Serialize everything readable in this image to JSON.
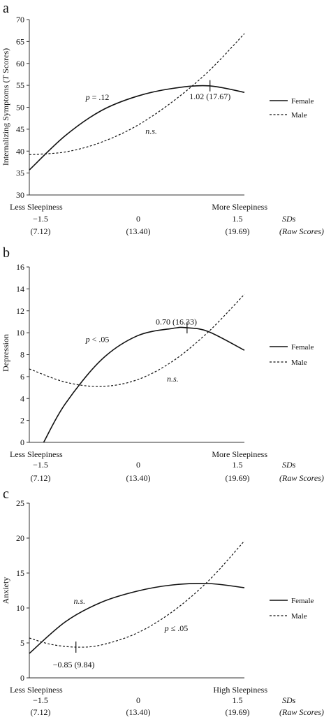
{
  "chart_data": [
    {
      "type": "line",
      "panel_letter": "a",
      "ylabel": "Internalizing Symptoms (T Scores)",
      "ylim": [
        30,
        70
      ],
      "yticks": [
        30,
        35,
        40,
        45,
        50,
        55,
        60,
        65,
        70
      ],
      "xlim": [
        -1.5,
        1.5
      ],
      "grid": false,
      "legend_position": "right",
      "x_end_labels": {
        "left": "Less Sleepiness",
        "right": "More Sleepiness"
      },
      "sd_ticks": [
        "−1.5",
        "0",
        "1.5"
      ],
      "sd_label": "SDs",
      "raw_ticks": [
        "(7.12)",
        "(13.40)",
        "(19.69)"
      ],
      "raw_label": "(Raw Scores)",
      "series": [
        {
          "name": "Female",
          "style": "solid",
          "x": [
            -1.5,
            -1.0,
            -0.5,
            0.0,
            0.5,
            1.0,
            1.5
          ],
          "y": [
            35.7,
            43.5,
            49.2,
            52.5,
            54.3,
            54.9,
            53.4
          ]
        },
        {
          "name": "Male",
          "style": "dashed",
          "x": [
            -1.5,
            -1.0,
            -0.5,
            0.0,
            0.5,
            1.0,
            1.5
          ],
          "y": [
            39.2,
            39.8,
            42.0,
            45.8,
            51.3,
            58.2,
            66.8
          ]
        }
      ],
      "annotations": [
        {
          "text": "p = .12",
          "x": -0.55,
          "y": 52.3,
          "italic_prefix": "p"
        },
        {
          "text": "n.s.",
          "x": 0.2,
          "y": 44.6,
          "italic": true
        },
        {
          "text": "1.02 (17.67)",
          "x": 1.02,
          "y": 52.5,
          "marker_x": 1.02,
          "marker_y": 54.9
        }
      ]
    },
    {
      "type": "line",
      "panel_letter": "b",
      "ylabel": "Depression",
      "ylim": [
        0,
        16
      ],
      "yticks": [
        0,
        2,
        4,
        6,
        8,
        10,
        12,
        14,
        16
      ],
      "xlim": [
        -1.5,
        1.5
      ],
      "grid": false,
      "legend_position": "right",
      "x_end_labels": {
        "left": "Less Sleepiness",
        "right": "More Sleepiness"
      },
      "sd_ticks": [
        "−1.5",
        "0",
        "1.5"
      ],
      "sd_label": "SDs",
      "raw_ticks": [
        "(7.12)",
        "(13.40)",
        "(19.69)"
      ],
      "raw_label": "(Raw Scores)",
      "series": [
        {
          "name": "Female",
          "style": "solid",
          "x": [
            -1.3,
            -1.0,
            -0.5,
            0.0,
            0.5,
            0.7,
            1.0,
            1.5
          ],
          "y": [
            0.0,
            3.5,
            7.5,
            9.7,
            10.4,
            10.45,
            10.1,
            8.4
          ]
        },
        {
          "name": "Male",
          "style": "dashed",
          "x": [
            -1.5,
            -1.0,
            -0.5,
            0.0,
            0.5,
            1.0,
            1.5
          ],
          "y": [
            6.7,
            5.5,
            5.1,
            5.7,
            7.4,
            10.1,
            13.5
          ]
        }
      ],
      "annotations": [
        {
          "text": "p < .05",
          "x": -0.55,
          "y": 9.4,
          "italic_prefix": "p"
        },
        {
          "text": "n.s.",
          "x": 0.5,
          "y": 5.8,
          "italic": true
        },
        {
          "text": "0.70 (16.33)",
          "x": 0.55,
          "y": 11.0,
          "marker_x": 0.7,
          "marker_y": 10.45
        }
      ]
    },
    {
      "type": "line",
      "panel_letter": "c",
      "ylabel": "Anxiety",
      "ylim": [
        0,
        25
      ],
      "yticks": [
        0,
        5,
        10,
        15,
        20,
        25
      ],
      "xlim": [
        -1.5,
        1.5
      ],
      "grid": false,
      "legend_position": "right",
      "x_end_labels": {
        "left": "Less Sleepiness",
        "right": "High Sleepiness"
      },
      "sd_ticks": [
        "−1.5",
        "0",
        "1.5"
      ],
      "sd_label": "SDs",
      "raw_ticks": [
        "(7.12)",
        "(13.40)",
        "(19.69)"
      ],
      "raw_label": "(Raw Scores)",
      "series": [
        {
          "name": "Female",
          "style": "solid",
          "x": [
            -1.5,
            -1.0,
            -0.5,
            0.0,
            0.5,
            1.0,
            1.5
          ],
          "y": [
            3.5,
            8.0,
            10.8,
            12.4,
            13.3,
            13.5,
            12.9
          ]
        },
        {
          "name": "Male",
          "style": "dashed",
          "x": [
            -1.5,
            -1.2,
            -0.85,
            -0.5,
            0.0,
            0.5,
            1.0,
            1.5
          ],
          "y": [
            5.7,
            4.8,
            4.4,
            4.7,
            6.4,
            9.5,
            13.9,
            19.6
          ]
        }
      ],
      "annotations": [
        {
          "text": "n.s.",
          "x": -0.8,
          "y": 11.0,
          "italic": true
        },
        {
          "text": "p ≤ .05",
          "x": 0.55,
          "y": 7.1,
          "italic_prefix": "p"
        },
        {
          "text": "−0.85 (9.84)",
          "x": -0.88,
          "y": 1.9,
          "marker_x": -0.85,
          "marker_y": 4.4
        }
      ]
    }
  ]
}
